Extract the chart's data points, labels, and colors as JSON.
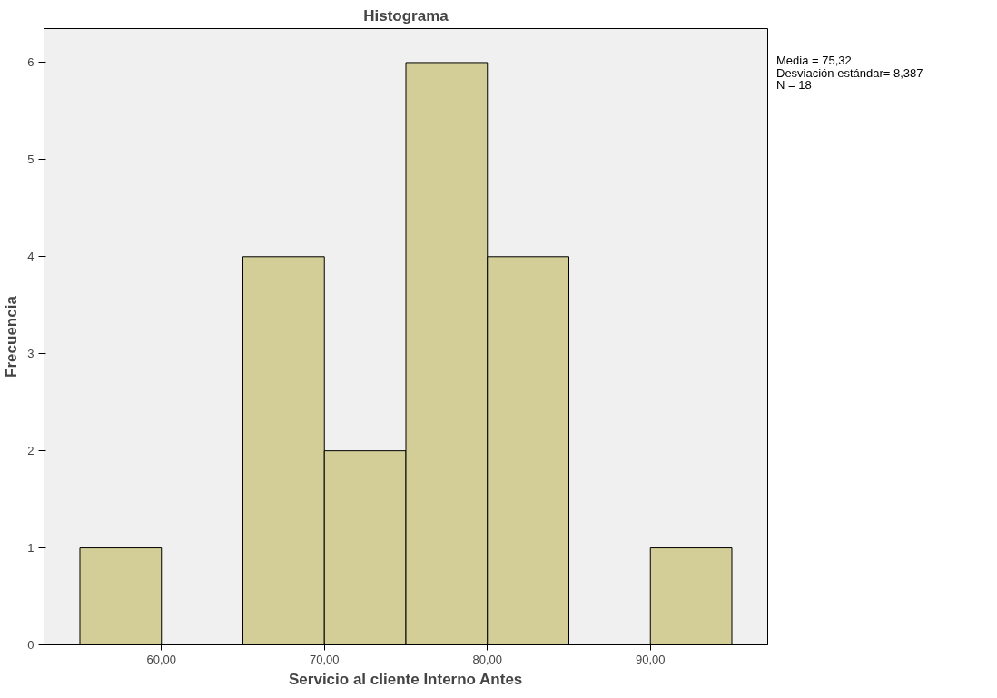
{
  "chart_data": {
    "type": "histogram",
    "title": "Histograma",
    "xlabel": "Servicio al cliente Interno Antes",
    "ylabel": "Frecuencia",
    "bins": [
      55,
      60,
      65,
      70,
      75,
      80,
      85,
      90,
      95
    ],
    "values": [
      1,
      0,
      4,
      2,
      6,
      4,
      0,
      1
    ],
    "color": "#d3ce97",
    "xlim": [
      52.8,
      97.2
    ],
    "ylim": [
      0,
      6.35
    ],
    "xticks": [
      {
        "value": 60,
        "label": "60,00"
      },
      {
        "value": 70,
        "label": "70,00"
      },
      {
        "value": 80,
        "label": "80,00"
      },
      {
        "value": 90,
        "label": "90,00"
      }
    ],
    "yticks": [
      0,
      1,
      2,
      3,
      4,
      5,
      6
    ],
    "grid": false,
    "annotations": [
      "Media = 75,32",
      "Desviación estándar= 8,387",
      "N = 18"
    ]
  }
}
